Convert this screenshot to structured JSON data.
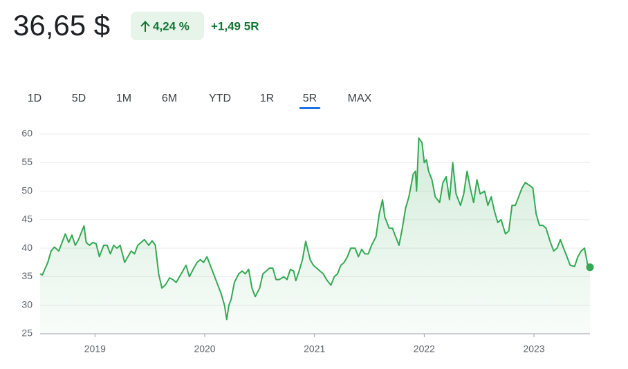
{
  "header": {
    "price": "36,65 $",
    "change_percent": "4,24 %",
    "change": "+1,49 5R"
  },
  "range_tabs": {
    "items": [
      "1D",
      "5D",
      "1M",
      "6M",
      "YTD",
      "1R",
      "5R",
      "MAX"
    ],
    "active": "5R"
  },
  "chart_data": {
    "type": "line",
    "color": "#34a853",
    "grid": true,
    "xlim": [
      2018.5,
      2023.51
    ],
    "xticks": [
      2019,
      2020,
      2021,
      2022,
      2023
    ],
    "ylim": [
      25,
      60
    ],
    "yticks": [
      25,
      30,
      35,
      40,
      45,
      50,
      55,
      60
    ],
    "x": [
      2018.5,
      2018.52,
      2018.57,
      2018.6,
      2018.63,
      2018.67,
      2018.7,
      2018.73,
      2018.76,
      2018.79,
      2018.82,
      2018.85,
      2018.9,
      2018.92,
      2018.95,
      2018.98,
      2019.01,
      2019.04,
      2019.08,
      2019.11,
      2019.14,
      2019.17,
      2019.2,
      2019.23,
      2019.27,
      2019.3,
      2019.33,
      2019.36,
      2019.39,
      2019.42,
      2019.45,
      2019.49,
      2019.52,
      2019.55,
      2019.58,
      2019.61,
      2019.64,
      2019.68,
      2019.71,
      2019.74,
      2019.77,
      2019.8,
      2019.83,
      2019.86,
      2019.9,
      2019.93,
      2019.96,
      2019.99,
      2020.02,
      2020.05,
      2020.09,
      2020.12,
      2020.15,
      2020.18,
      2020.2,
      2020.22,
      2020.24,
      2020.27,
      2020.31,
      2020.34,
      2020.37,
      2020.4,
      2020.43,
      2020.46,
      2020.5,
      2020.53,
      2020.56,
      2020.59,
      2020.62,
      2020.65,
      2020.68,
      2020.72,
      2020.75,
      2020.78,
      2020.81,
      2020.83,
      2020.86,
      2020.89,
      2020.92,
      2020.96,
      2020.99,
      2021.02,
      2021.05,
      2021.08,
      2021.11,
      2021.15,
      2021.18,
      2021.21,
      2021.24,
      2021.27,
      2021.3,
      2021.33,
      2021.37,
      2021.4,
      2021.43,
      2021.46,
      2021.49,
      2021.52,
      2021.56,
      2021.59,
      2021.62,
      2021.64,
      2021.68,
      2021.71,
      2021.74,
      2021.77,
      2021.8,
      2021.83,
      2021.86,
      2021.9,
      2021.92,
      2021.93,
      2021.95,
      2021.98,
      2022,
      2022.02,
      2022.04,
      2022.07,
      2022.1,
      2022.14,
      2022.17,
      2022.2,
      2022.23,
      2022.26,
      2022.29,
      2022.33,
      2022.36,
      2022.39,
      2022.42,
      2022.45,
      2022.48,
      2022.51,
      2022.55,
      2022.58,
      2022.61,
      2022.64,
      2022.67,
      2022.7,
      2022.74,
      2022.77,
      2022.8,
      2022.83,
      2022.86,
      2022.89,
      2022.92,
      2022.96,
      2022.99,
      2023.02,
      2023.05,
      2023.08,
      2023.11,
      2023.15,
      2023.18,
      2023.21,
      2023.24,
      2023.27,
      2023.3,
      2023.33,
      2023.37,
      2023.4,
      2023.43,
      2023.46,
      2023.49,
      2023.51
    ],
    "values": [
      35.5,
      35.3,
      37.5,
      39.5,
      40.2,
      39.5,
      41,
      42.5,
      41,
      42.3,
      40.5,
      41.5,
      43.9,
      41,
      40.5,
      41,
      40.8,
      38.5,
      40.5,
      40.5,
      39,
      40.5,
      40,
      40.5,
      37.5,
      38.5,
      39.5,
      39,
      40.5,
      41,
      41.5,
      40.5,
      41.3,
      40.5,
      35.5,
      33,
      33.5,
      34.8,
      34.5,
      34,
      35,
      36,
      37,
      35,
      36.5,
      37.5,
      38,
      37.5,
      38.5,
      37,
      35,
      33.5,
      32,
      30,
      27.5,
      30,
      31,
      34,
      35.5,
      36,
      35.5,
      36.3,
      33,
      31.5,
      33,
      35.5,
      36,
      36.5,
      36.5,
      34.5,
      34.5,
      35,
      34.5,
      36.3,
      36,
      34.3,
      36,
      38,
      41.2,
      38,
      37,
      36.5,
      36,
      35.5,
      34.5,
      33.5,
      35,
      35.5,
      37,
      37.5,
      38.5,
      40,
      40,
      38.5,
      39.8,
      39,
      39,
      40.5,
      42,
      46,
      48.5,
      45.5,
      43.5,
      43.5,
      42,
      40.5,
      43.5,
      47,
      49,
      53,
      53.5,
      50,
      59.3,
      58.5,
      55,
      55.5,
      53.5,
      52,
      49,
      48,
      51.5,
      52.5,
      48.5,
      55,
      49.5,
      47.5,
      49.5,
      53.5,
      50.5,
      48,
      52,
      49.5,
      50,
      47.5,
      49,
      46.5,
      44.5,
      45,
      42.5,
      43,
      47.5,
      47.5,
      49,
      50.5,
      51.5,
      51,
      50.5,
      46,
      44,
      44,
      43.5,
      41,
      39.5,
      40,
      41.5,
      40,
      38.5,
      37,
      36.8,
      38.5,
      39.5,
      40,
      37,
      36.65
    ]
  }
}
